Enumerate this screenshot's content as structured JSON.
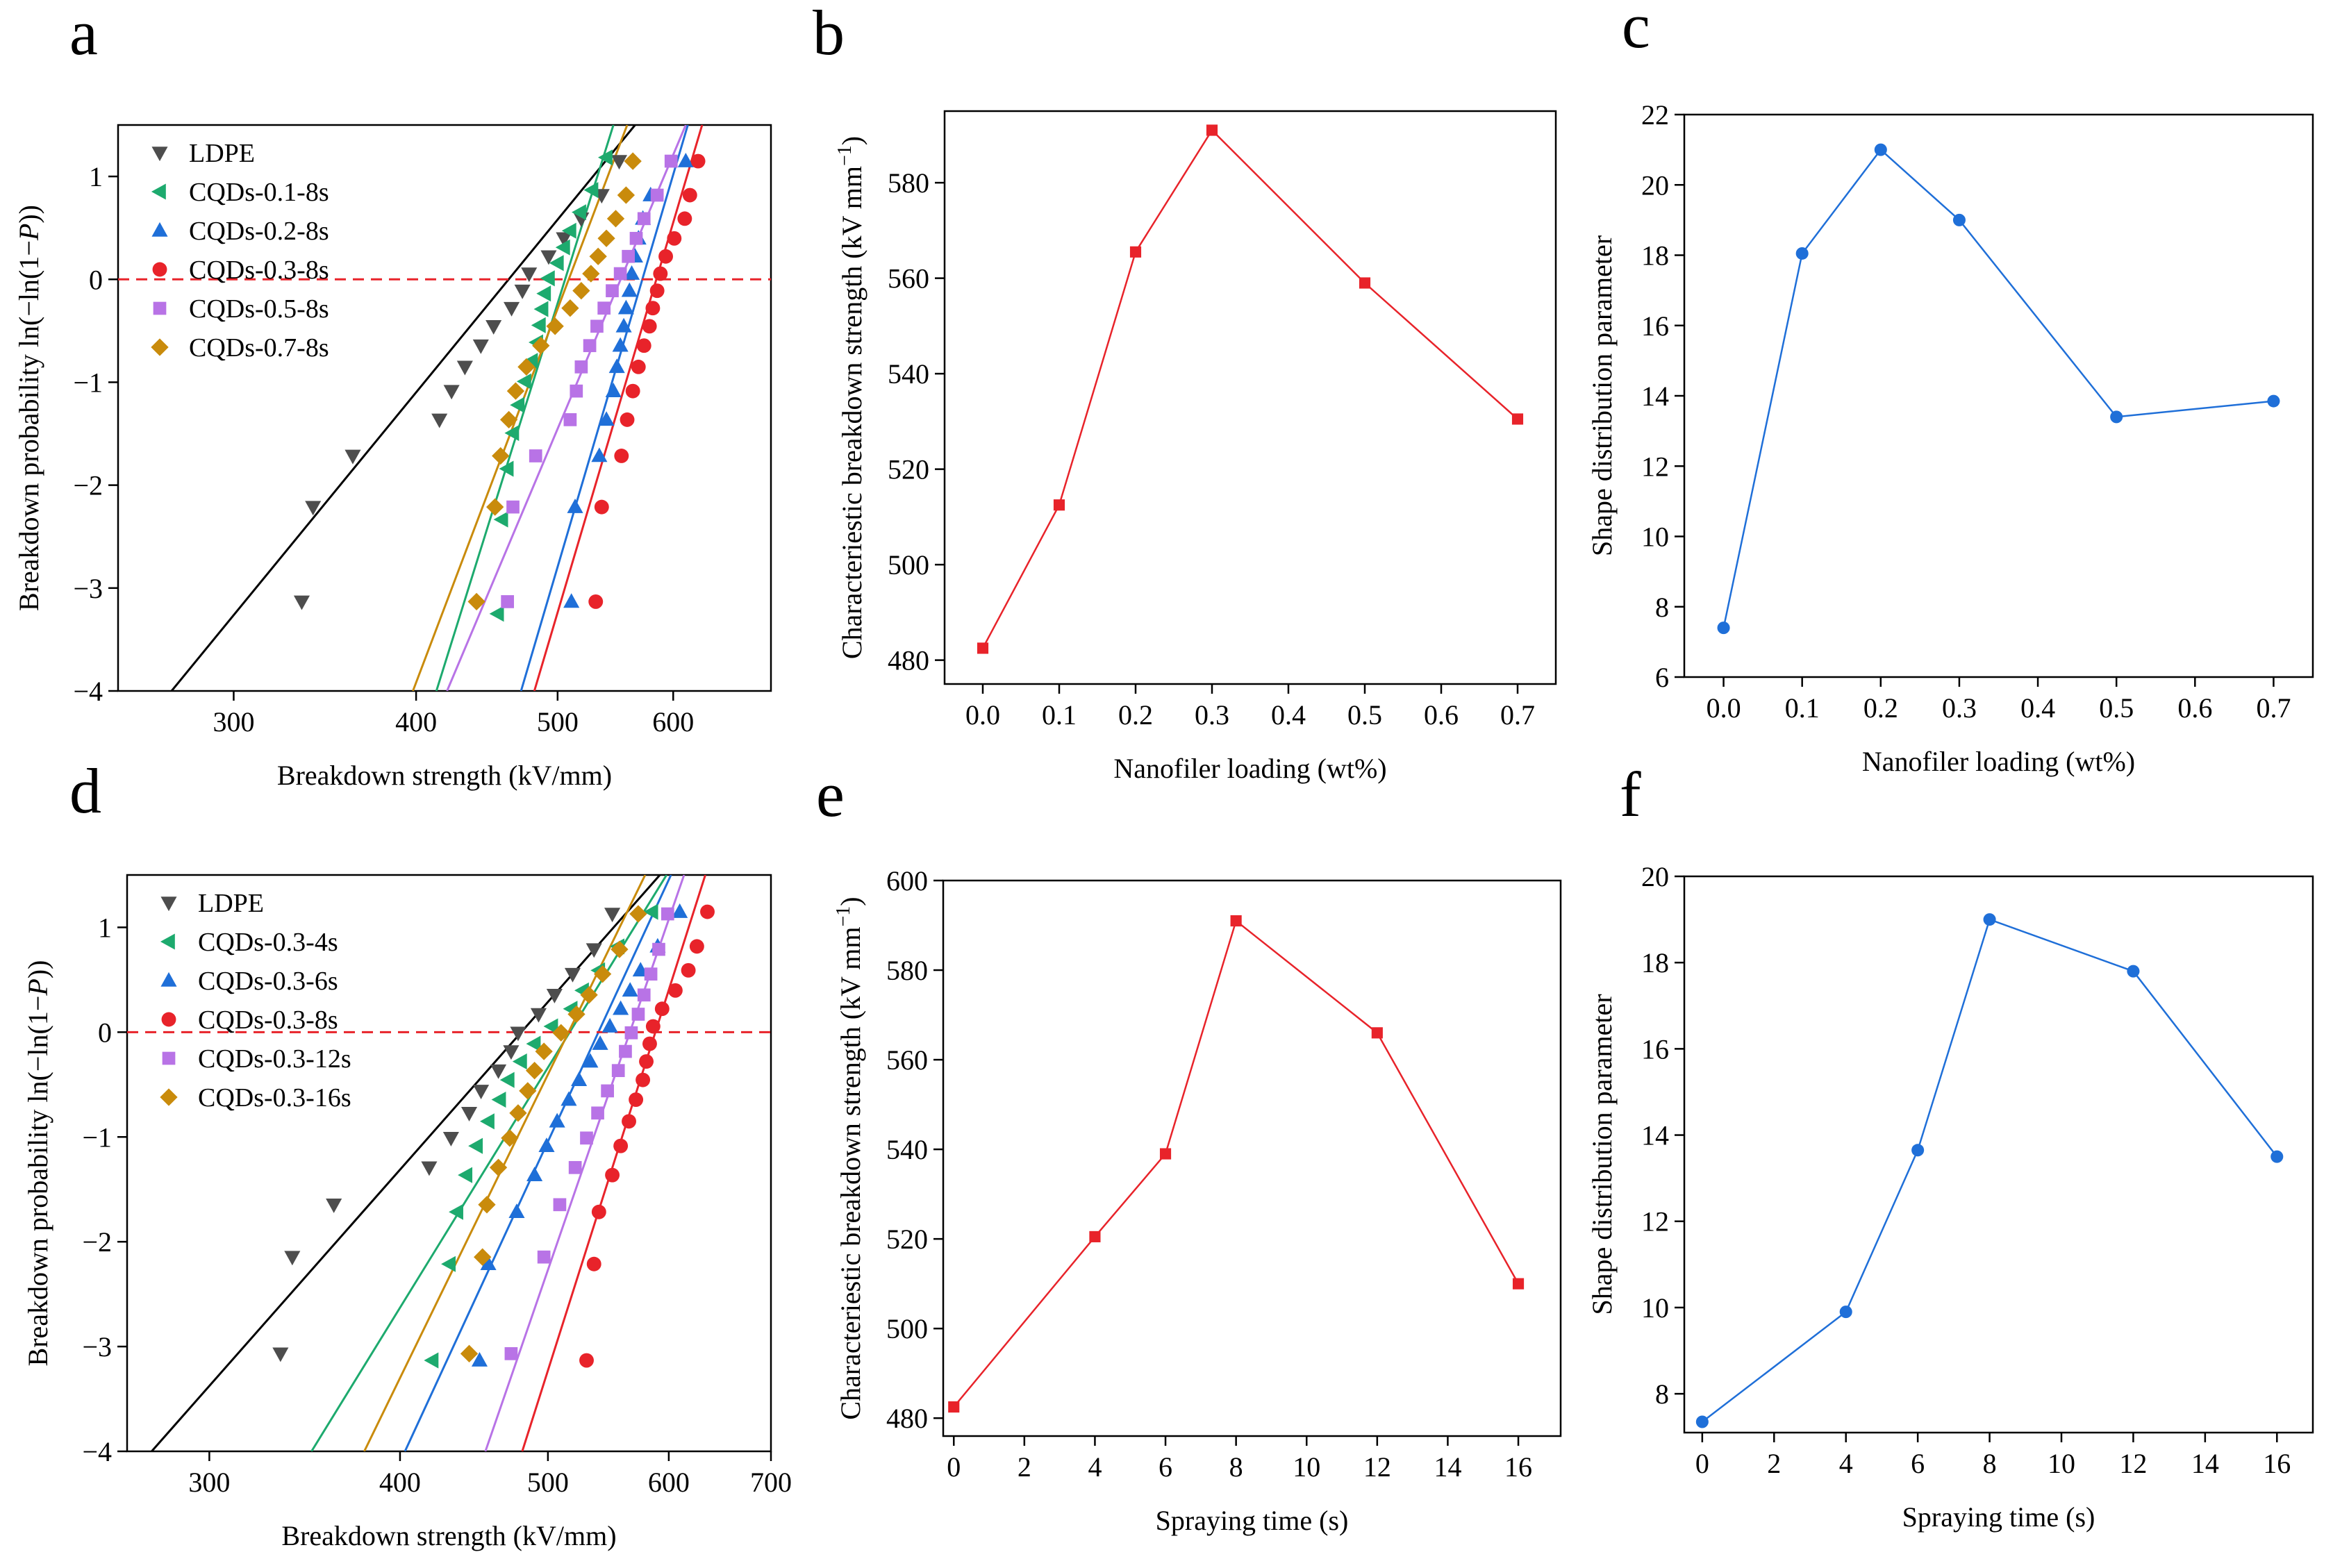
{
  "figure": {
    "panel_letters": [
      "a",
      "b",
      "c",
      "d",
      "e",
      "f"
    ]
  },
  "chart_data": [
    {
      "panel": "a",
      "type": "scatter",
      "title": "",
      "xlabel": "Breakdown strength (kV/mm)",
      "ylabel": "Breakdown probability ln(−ln(1−P))",
      "xscale": "log",
      "xlim": [
        250,
        700
      ],
      "ylim": [
        -4,
        1.5
      ],
      "xticks": [
        300,
        400,
        500,
        600
      ],
      "yticks": [
        -4,
        -3,
        -2,
        -1,
        0,
        1
      ],
      "reference_line": {
        "y": 0,
        "style": "dashed",
        "color": "#e8232a"
      },
      "legend_position": "top-left",
      "series": [
        {
          "name": "LDPE",
          "marker": "triangle-down",
          "color": "#4d4d4d",
          "x": [
            334,
            340,
            362,
            415,
            423,
            432,
            443,
            452,
            465,
            473,
            478,
            493,
            505,
            519,
            536,
            551
          ],
          "fit": [
            [
              272,
              -4
            ],
            [
              565,
              1.5
            ]
          ]
        },
        {
          "name": "CQDs-0.1-8s",
          "marker": "triangle-left",
          "color": "#1daa6e",
          "x": [
            455,
            458,
            462,
            466,
            470,
            475,
            480,
            484,
            486,
            488,
            490,
            493,
            500,
            505,
            510,
            518,
            528,
            540
          ],
          "fit": [
            [
              413,
              -4
            ],
            [
              546,
              1.5
            ]
          ]
        },
        {
          "name": "CQDs-0.2-8s",
          "marker": "triangle-up",
          "color": "#1f6fd8",
          "x": [
            511,
            514,
            534,
            540,
            546,
            549,
            552,
            555,
            557,
            560,
            562,
            565,
            568,
            572,
            579,
            612
          ],
          "fit": [
            [
              472,
              -4
            ],
            [
              614,
              1.5
            ]
          ]
        },
        {
          "name": "CQDs-0.3-8s",
          "marker": "circle",
          "color": "#e8232a",
          "x": [
            531,
            536,
            553,
            558,
            563,
            568,
            573,
            578,
            581,
            585,
            588,
            593,
            601,
            611,
            616,
            624
          ],
          "fit": [
            [
              482,
              -4
            ],
            [
              628,
              1.5
            ]
          ]
        },
        {
          "name": "CQDs-0.5-8s",
          "marker": "square",
          "color": "#b873e6",
          "x": [
            462,
            466,
            483,
            510,
            515,
            519,
            526,
            532,
            538,
            545,
            552,
            559,
            566,
            573,
            585,
            598
          ],
          "fit": [
            [
              420,
              -4
            ],
            [
              612,
              1.5
            ]
          ]
        },
        {
          "name": "CQDs-0.7-8s",
          "marker": "diamond",
          "color": "#c98b0c",
          "x": [
            440,
            453,
            457,
            463,
            468,
            476,
            487,
            498,
            510,
            519,
            527,
            533,
            540,
            548,
            557,
            563
          ],
          "fit": [
            [
              398,
              -4
            ],
            [
              558,
              1.5
            ]
          ]
        }
      ]
    },
    {
      "panel": "b",
      "type": "line",
      "xlabel": "Nanofiler loading (wt%)",
      "ylabel": "Characteriestic breakdown strength (kV mm",
      "ylabel_sup": "−1",
      "ylabel_close": ")",
      "xlim": [
        -0.05,
        0.75
      ],
      "ylim": [
        475,
        595
      ],
      "xticks": [
        0.0,
        0.1,
        0.2,
        0.3,
        0.4,
        0.5,
        0.6,
        0.7
      ],
      "yticks": [
        480,
        500,
        520,
        540,
        560,
        580
      ],
      "marker": "square",
      "color": "#e8232a",
      "x": [
        0.0,
        0.1,
        0.2,
        0.3,
        0.5,
        0.7
      ],
      "y": [
        482.5,
        512.5,
        565.5,
        591,
        559,
        530.5
      ]
    },
    {
      "panel": "c",
      "type": "line",
      "xlabel": "Nanofiler loading (wt%)",
      "ylabel": "Shape distribution parameter",
      "xlim": [
        -0.05,
        0.75
      ],
      "ylim": [
        6,
        22
      ],
      "xticks": [
        0.0,
        0.1,
        0.2,
        0.3,
        0.4,
        0.5,
        0.6,
        0.7
      ],
      "yticks": [
        6,
        8,
        10,
        12,
        14,
        16,
        18,
        20,
        22
      ],
      "marker": "circle",
      "color": "#1f6fd8",
      "x": [
        0.0,
        0.1,
        0.2,
        0.3,
        0.5,
        0.7
      ],
      "y": [
        7.4,
        18.05,
        21.0,
        19.0,
        13.4,
        13.85
      ]
    },
    {
      "panel": "d",
      "type": "scatter",
      "title": "",
      "xlabel": "Breakdown strength (kV/mm)",
      "ylabel": "Breakdown probability ln(−ln(1−P))",
      "xscale": "log",
      "xlim": [
        265,
        700
      ],
      "ylim": [
        -4,
        1.5
      ],
      "xticks": [
        300,
        400,
        500,
        600,
        700
      ],
      "yticks": [
        -4,
        -3,
        -2,
        -1,
        0,
        1
      ],
      "reference_line": {
        "y": 0,
        "style": "dashed",
        "color": "#e8232a"
      },
      "legend_position": "top-left",
      "series": [
        {
          "name": "LDPE",
          "marker": "triangle-down",
          "color": "#4d4d4d",
          "x": [
            334,
            340,
            362,
            418,
            432,
            444,
            452,
            464,
            473,
            478,
            493,
            505,
            519,
            536,
            551
          ],
          "fit": [
            [
              275,
              -4
            ],
            [
              592,
              1.5
            ]
          ]
        },
        {
          "name": "CQDs-0.3-4s",
          "marker": "triangle-left",
          "color": "#1daa6e",
          "x": [
            420,
            431,
            436,
            442,
            449,
            457,
            465,
            471,
            480,
            490,
            503,
            518,
            527,
            540,
            556,
            585
          ],
          "fit": [
            [
              350,
              -4
            ],
            [
              598,
              1.5
            ]
          ]
        },
        {
          "name": "CQDs-0.3-6s",
          "marker": "triangle-up",
          "color": "#1f6fd8",
          "x": [
            451,
            457,
            477,
            490,
            499,
            507,
            516,
            524,
            533,
            541,
            549,
            558,
            566,
            575,
            590,
            610
          ],
          "fit": [
            [
              403,
              -4
            ],
            [
              602,
              1.5
            ]
          ]
        },
        {
          "name": "CQDs-0.3-8s",
          "marker": "circle",
          "color": "#e8232a",
          "x": [
            530,
            536,
            540,
            551,
            558,
            565,
            571,
            577,
            580,
            583,
            586,
            594,
            606,
            618,
            626,
            636
          ],
          "fit": [
            [
              481,
              -4
            ],
            [
              634,
              1.5
            ]
          ]
        },
        {
          "name": "CQDs-0.3-12s",
          "marker": "square",
          "color": "#b873e6",
          "x": [
            473,
            497,
            509,
            521,
            530,
            539,
            547,
            556,
            562,
            567,
            573,
            578,
            584,
            591,
            599
          ],
          "fit": [
            [
              455,
              -4
            ],
            [
              614,
              1.5
            ]
          ]
        },
        {
          "name": "CQDs-0.3-16s",
          "marker": "diamond",
          "color": "#c98b0c",
          "x": [
            444,
            453,
            456,
            464,
            472,
            478,
            485,
            490,
            497,
            510,
            522,
            532,
            543,
            557,
            573
          ],
          "fit": [
            [
              379,
              -4
            ],
            [
              579,
              1.5
            ]
          ]
        }
      ]
    },
    {
      "panel": "e",
      "type": "line",
      "xlabel": "Spraying time (s)",
      "ylabel": "Characteriestic breakdown strength (kV mm",
      "ylabel_sup": "−1",
      "ylabel_close": ")",
      "xlim": [
        -0.3,
        17.2
      ],
      "ylim": [
        476,
        600
      ],
      "xticks": [
        0,
        2,
        4,
        6,
        8,
        10,
        12,
        14,
        16
      ],
      "yticks": [
        480,
        500,
        520,
        540,
        560,
        580,
        600
      ],
      "marker": "square",
      "color": "#e8232a",
      "x": [
        0,
        4,
        6,
        8,
        12,
        16
      ],
      "y": [
        482.5,
        520.5,
        539,
        591,
        566,
        510
      ]
    },
    {
      "panel": "f",
      "type": "line",
      "xlabel": "Spraying time (s)",
      "ylabel": "Shape distribution parameter",
      "xlim": [
        -0.5,
        17
      ],
      "ylim": [
        7.1,
        20
      ],
      "xticks": [
        0,
        2,
        4,
        6,
        8,
        10,
        12,
        14,
        16
      ],
      "yticks": [
        8,
        10,
        12,
        14,
        16,
        18,
        20
      ],
      "marker": "circle",
      "color": "#1f6fd8",
      "x": [
        0,
        4,
        6,
        8,
        12,
        16
      ],
      "y": [
        7.35,
        9.9,
        13.65,
        19.0,
        17.8,
        13.5
      ]
    }
  ]
}
